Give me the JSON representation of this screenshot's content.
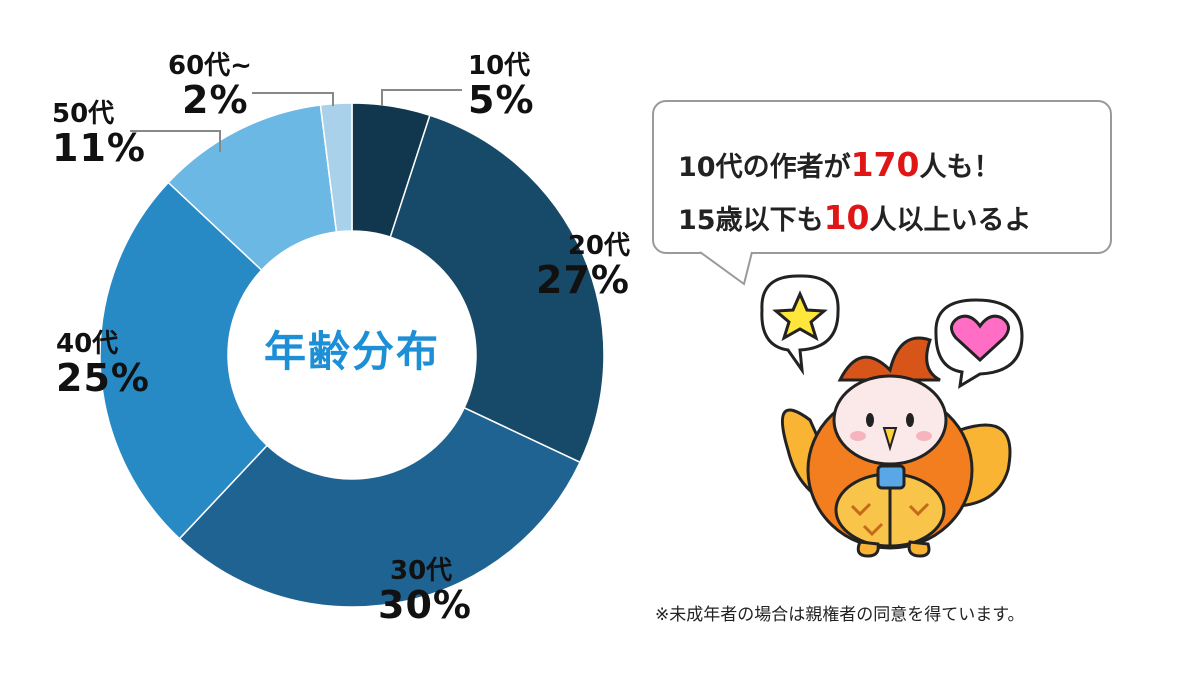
{
  "chart_data": {
    "type": "pie",
    "title": "年齢分布",
    "categories": [
      "10代",
      "20代",
      "30代",
      "40代",
      "50代",
      "60代~"
    ],
    "values": [
      5,
      27,
      30,
      25,
      11,
      2
    ],
    "value_labels": [
      "5%",
      "27%",
      "30%",
      "25%",
      "11%",
      "2%"
    ],
    "colors": [
      "#11374f",
      "#174a68",
      "#1e6391",
      "#278ac4",
      "#6bb8e4",
      "#a9d2ea"
    ],
    "donut": true,
    "legend": "none"
  },
  "bubble": {
    "line1_a": "10代の作者が",
    "line1_b": "170",
    "line1_c": "人も！",
    "line2_a": "15歳以下も",
    "line2_b": "10",
    "line2_c": "人以上いるよ"
  },
  "footnote": "※未成年者の場合は親権者の同意を得ています。",
  "colors": {
    "accent_title": "#1d8fd6",
    "highlight": "#e01515"
  },
  "icons": [
    "star-icon",
    "heart-icon",
    "owl-mascot-icon"
  ]
}
